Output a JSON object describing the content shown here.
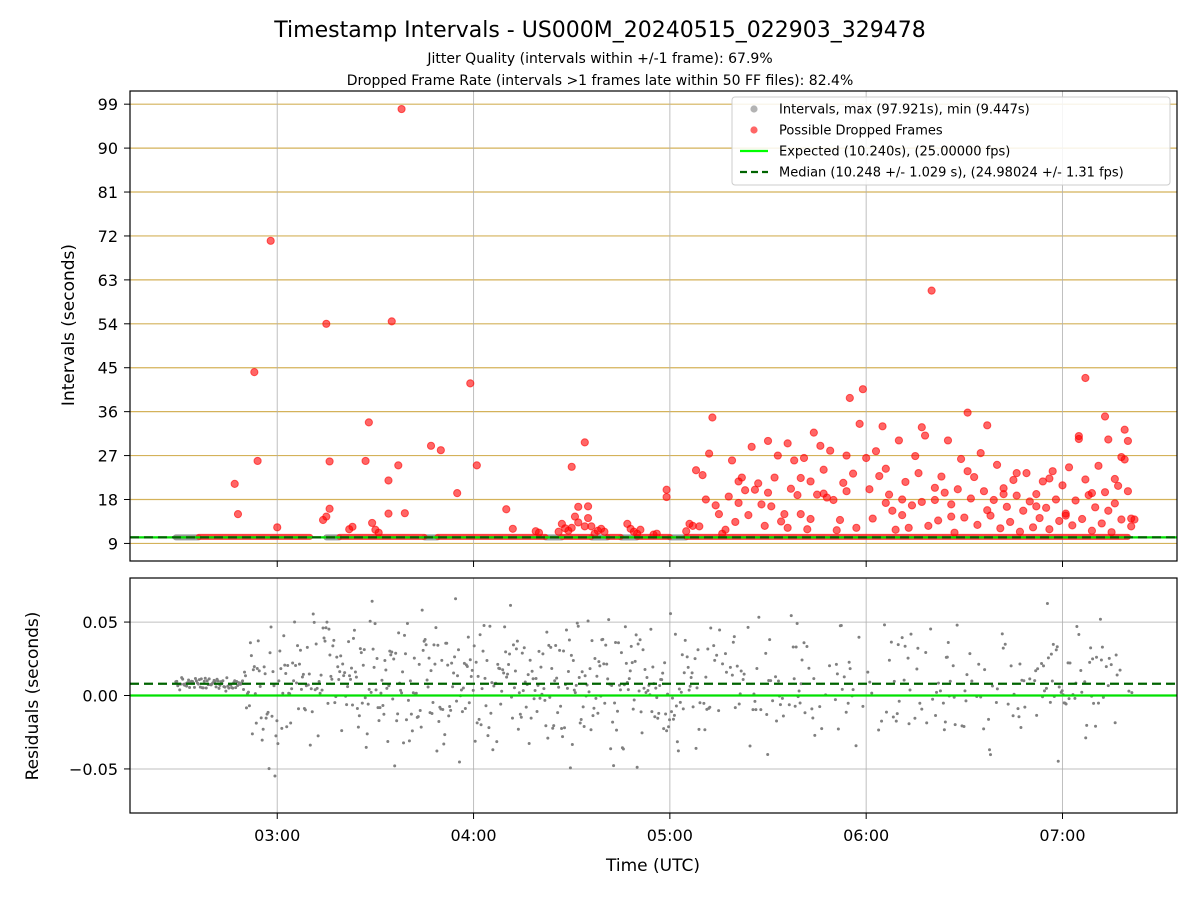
{
  "chart_data": [
    {
      "type": "scatter",
      "panel": "intervals",
      "title": "Timestamp Intervals - US000M_20240515_022903_329478",
      "subtitle_lines": [
        "Jitter Quality (intervals within +/-1 frame): 67.9%",
        "Dropped Frame Rate (intervals >1 frames late within 50 FF files): 82.4%"
      ],
      "ylabel": "Intervals (seconds)",
      "ylim": [
        5.4,
        101.7
      ],
      "yticks": [
        9,
        18,
        27,
        36,
        45,
        54,
        63,
        72,
        81,
        90,
        99
      ],
      "ytick_labels": [
        "9",
        "18",
        "27",
        "36",
        "45",
        "54",
        "63",
        "72",
        "81",
        "90",
        "99"
      ],
      "xlim": [
        "02:15",
        "07:35"
      ],
      "xticks": [
        "03:00",
        "04:00",
        "05:00",
        "06:00",
        "07:00"
      ],
      "grid": "horizontal gold lines at y ticks, vertical grey lines at x ticks",
      "legend_position": "top-right",
      "legend": [
        {
          "label": "Intervals, max (97.921s), min (9.447s)",
          "kind": "point",
          "color": "#808080"
        },
        {
          "label": "Possible Dropped Frames",
          "kind": "point",
          "color": "#ff0000"
        },
        {
          "label": "Expected (10.240s), (25.00000 fps)",
          "kind": "line",
          "color": "#00ff00"
        },
        {
          "label": "Median (10.248 +/- 1.029 s), (24.98024 +/- 1.31 fps)",
          "kind": "dashed",
          "color": "#006400"
        }
      ],
      "expected_line": 10.24,
      "median_line": 10.248,
      "normal_segments": [
        {
          "x_start": "02:29",
          "x_end": "02:36",
          "y": 10.24
        },
        {
          "x_start": "03:15",
          "x_end": "03:19",
          "y": 10.24
        },
        {
          "x_start": "03:45",
          "x_end": "03:49",
          "y": 10.24
        },
        {
          "x_start": "04:22",
          "x_end": "04:27",
          "y": 10.24
        },
        {
          "x_start": "04:36",
          "x_end": "04:41",
          "y": 10.24
        },
        {
          "x_start": "04:45",
          "x_end": "04:50",
          "y": 10.24
        },
        {
          "x_start": "05:00",
          "x_end": "05:05",
          "y": 10.24
        }
      ],
      "dense_dropped_segments": [
        {
          "x_start": "02:36",
          "x_end": "03:10",
          "y": 10.35
        },
        {
          "x_start": "03:19",
          "x_end": "03:45",
          "y": 10.35
        },
        {
          "x_start": "03:49",
          "x_end": "04:22",
          "y": 10.35
        },
        {
          "x_start": "04:27",
          "x_end": "04:36",
          "y": 10.35
        },
        {
          "x_start": "04:41",
          "x_end": "04:45",
          "y": 10.35
        },
        {
          "x_start": "04:50",
          "x_end": "05:00",
          "y": 10.35
        },
        {
          "x_start": "05:05",
          "x_end": "07:20",
          "y": 10.35
        }
      ],
      "dropped_points": [
        [
          "02:47",
          21.2
        ],
        [
          "02:48",
          15.0
        ],
        [
          "02:53",
          44.1
        ],
        [
          "02:54",
          25.9
        ],
        [
          "02:58",
          71.0
        ],
        [
          "03:00",
          12.3
        ],
        [
          "03:14",
          13.8
        ],
        [
          "03:15",
          14.5
        ],
        [
          "03:16",
          16.1
        ],
        [
          "03:15",
          54.0
        ],
        [
          "03:16",
          25.8
        ],
        [
          "03:22",
          11.9
        ],
        [
          "03:23",
          12.4
        ],
        [
          "03:27",
          25.9
        ],
        [
          "03:28",
          33.8
        ],
        [
          "03:29",
          13.2
        ],
        [
          "03:30",
          11.8
        ],
        [
          "03:31",
          11.2
        ],
        [
          "03:34",
          21.9
        ],
        [
          "03:34",
          15.1
        ],
        [
          "03:35",
          54.5
        ],
        [
          "03:37",
          25.0
        ],
        [
          "03:38",
          98.0
        ],
        [
          "03:39",
          15.2
        ],
        [
          "03:47",
          29.0
        ],
        [
          "03:50",
          28.1
        ],
        [
          "03:55",
          19.3
        ],
        [
          "03:59",
          41.8
        ],
        [
          "04:01",
          25.0
        ],
        [
          "04:10",
          16.0
        ],
        [
          "04:12",
          12.0
        ],
        [
          "04:19",
          11.5
        ],
        [
          "04:20",
          11.2
        ],
        [
          "04:26",
          11.4
        ],
        [
          "04:27",
          13.0
        ],
        [
          "04:28",
          12.1
        ],
        [
          "04:29",
          11.6
        ],
        [
          "04:30",
          24.7
        ],
        [
          "04:30",
          12.2
        ],
        [
          "04:31",
          14.5
        ],
        [
          "04:32",
          16.5
        ],
        [
          "04:32",
          13.3
        ],
        [
          "04:34",
          12.5
        ],
        [
          "04:34",
          29.7
        ],
        [
          "04:35",
          16.6
        ],
        [
          "04:35",
          14.2
        ],
        [
          "04:36",
          12.5
        ],
        [
          "04:37",
          11.0
        ],
        [
          "04:38",
          11.6
        ],
        [
          "04:39",
          12.0
        ],
        [
          "04:40",
          11.4
        ],
        [
          "04:47",
          13.0
        ],
        [
          "04:48",
          12.0
        ],
        [
          "04:49",
          11.4
        ],
        [
          "04:50",
          11.0
        ],
        [
          "04:51",
          11.8
        ],
        [
          "04:55",
          10.8
        ],
        [
          "04:56",
          11.0
        ],
        [
          "04:59",
          18.5
        ],
        [
          "04:59",
          20.0
        ],
        [
          "05:05",
          11.5
        ],
        [
          "05:06",
          13.0
        ],
        [
          "05:07",
          12.6
        ],
        [
          "05:08",
          24.0
        ],
        [
          "05:09",
          12.5
        ],
        [
          "05:10",
          23.0
        ],
        [
          "05:11",
          18.0
        ],
        [
          "05:12",
          27.4
        ],
        [
          "05:13",
          34.8
        ],
        [
          "05:14",
          16.8
        ],
        [
          "05:15",
          15.0
        ],
        [
          "05:16",
          11.0
        ],
        [
          "05:17",
          11.8
        ],
        [
          "05:18",
          18.6
        ],
        [
          "05:19",
          26.0
        ],
        [
          "05:20",
          13.4
        ],
        [
          "05:21",
          17.3
        ],
        [
          "05:22",
          22.5
        ],
        [
          "05:23",
          19.9
        ],
        [
          "05:24",
          14.8
        ],
        [
          "05:25",
          28.8
        ],
        [
          "05:26",
          20.0
        ],
        [
          "05:27",
          21.3
        ],
        [
          "05:28",
          17.0
        ],
        [
          "05:29",
          12.6
        ],
        [
          "05:30",
          30.0
        ],
        [
          "05:31",
          16.6
        ],
        [
          "05:32",
          22.5
        ],
        [
          "05:33",
          27.0
        ],
        [
          "05:34",
          13.5
        ],
        [
          "05:35",
          15.0
        ],
        [
          "05:36",
          29.5
        ],
        [
          "05:37",
          20.2
        ],
        [
          "05:38",
          26.0
        ],
        [
          "05:39",
          18.9
        ],
        [
          "05:40",
          22.4
        ],
        [
          "05:41",
          26.5
        ],
        [
          "05:42",
          11.9
        ],
        [
          "05:43",
          14.0
        ],
        [
          "05:44",
          31.7
        ],
        [
          "05:45",
          19.0
        ],
        [
          "05:46",
          29.0
        ],
        [
          "05:47",
          24.1
        ],
        [
          "05:48",
          18.4
        ],
        [
          "05:49",
          28.0
        ],
        [
          "05:50",
          17.9
        ],
        [
          "05:51",
          11.7
        ],
        [
          "05:52",
          13.8
        ],
        [
          "05:53",
          21.4
        ],
        [
          "05:54",
          27.0
        ],
        [
          "05:55",
          38.8
        ],
        [
          "05:56",
          23.3
        ],
        [
          "05:57",
          12.2
        ],
        [
          "05:58",
          33.5
        ],
        [
          "05:59",
          40.6
        ],
        [
          "06:00",
          26.5
        ],
        [
          "06:01",
          20.1
        ],
        [
          "06:02",
          14.1
        ],
        [
          "06:03",
          27.9
        ],
        [
          "06:04",
          22.8
        ],
        [
          "06:05",
          33.0
        ],
        [
          "06:06",
          17.3
        ],
        [
          "06:07",
          19.0
        ],
        [
          "06:08",
          15.7
        ],
        [
          "06:09",
          11.8
        ],
        [
          "06:10",
          30.1
        ],
        [
          "06:11",
          18.0
        ],
        [
          "06:12",
          21.6
        ],
        [
          "06:13",
          12.2
        ],
        [
          "06:14",
          16.8
        ],
        [
          "06:15",
          26.9
        ],
        [
          "06:16",
          23.4
        ],
        [
          "06:17",
          17.5
        ],
        [
          "06:18",
          31.1
        ],
        [
          "06:19",
          12.6
        ],
        [
          "06:20",
          60.8
        ],
        [
          "06:21",
          17.9
        ],
        [
          "06:22",
          13.7
        ],
        [
          "06:23",
          22.7
        ],
        [
          "06:24",
          19.4
        ],
        [
          "06:25",
          30.1
        ],
        [
          "06:26",
          17.0
        ],
        [
          "06:27",
          11.2
        ],
        [
          "06:28",
          20.1
        ],
        [
          "06:29",
          26.3
        ],
        [
          "06:30",
          14.3
        ],
        [
          "06:31",
          35.8
        ],
        [
          "06:32",
          18.2
        ],
        [
          "06:33",
          22.6
        ],
        [
          "06:34",
          12.8
        ],
        [
          "06:35",
          27.5
        ],
        [
          "06:36",
          19.7
        ],
        [
          "06:37",
          33.2
        ],
        [
          "06:38",
          14.7
        ],
        [
          "06:39",
          17.9
        ],
        [
          "06:40",
          25.1
        ],
        [
          "06:41",
          12.1
        ],
        [
          "06:42",
          20.3
        ],
        [
          "06:43",
          16.5
        ],
        [
          "06:44",
          13.4
        ],
        [
          "06:45",
          22.0
        ],
        [
          "06:46",
          18.8
        ],
        [
          "06:47",
          11.4
        ],
        [
          "06:48",
          15.7
        ],
        [
          "06:49",
          23.4
        ],
        [
          "06:50",
          17.6
        ],
        [
          "06:51",
          12.3
        ],
        [
          "06:52",
          19.1
        ],
        [
          "06:53",
          14.2
        ],
        [
          "06:54",
          21.7
        ],
        [
          "06:55",
          16.3
        ],
        [
          "06:56",
          11.9
        ],
        [
          "06:57",
          23.8
        ],
        [
          "06:58",
          18.0
        ],
        [
          "06:59",
          13.6
        ],
        [
          "07:00",
          20.9
        ],
        [
          "07:01",
          15.1
        ],
        [
          "07:02",
          24.6
        ],
        [
          "07:03",
          12.7
        ],
        [
          "07:04",
          17.8
        ],
        [
          "07:05",
          30.4
        ],
        [
          "07:06",
          14.0
        ],
        [
          "07:07",
          22.1
        ],
        [
          "07:08",
          18.9
        ],
        [
          "07:09",
          11.6
        ],
        [
          "07:10",
          16.4
        ],
        [
          "07:11",
          24.9
        ],
        [
          "07:12",
          13.1
        ],
        [
          "07:13",
          19.5
        ],
        [
          "07:14",
          15.7
        ],
        [
          "07:15",
          11.3
        ],
        [
          "07:16",
          17.2
        ],
        [
          "07:17",
          20.8
        ],
        [
          "07:18",
          13.9
        ],
        [
          "07:19",
          26.2
        ],
        [
          "07:20",
          30.0
        ],
        [
          "07:21",
          12.5
        ],
        [
          "05:21",
          21.7
        ],
        [
          "05:30",
          19.4
        ],
        [
          "05:36",
          12.2
        ],
        [
          "05:40",
          15.0
        ],
        [
          "05:43",
          21.7
        ],
        [
          "05:47",
          19.2
        ],
        [
          "05:54",
          19.7
        ],
        [
          "06:06",
          24.3
        ],
        [
          "06:11",
          14.8
        ],
        [
          "06:17",
          32.8
        ],
        [
          "06:21",
          20.4
        ],
        [
          "06:26",
          14.5
        ],
        [
          "06:31",
          23.8
        ],
        [
          "06:37",
          15.8
        ],
        [
          "06:42",
          19.1
        ],
        [
          "06:46",
          23.4
        ],
        [
          "06:52",
          16.6
        ],
        [
          "06:56",
          22.3
        ],
        [
          "07:01",
          14.7
        ],
        [
          "07:05",
          31.0
        ],
        [
          "07:07",
          42.9
        ],
        [
          "07:09",
          19.3
        ],
        [
          "07:13",
          35.0
        ],
        [
          "07:14",
          30.3
        ],
        [
          "07:16",
          22.2
        ],
        [
          "07:18",
          26.7
        ],
        [
          "07:19",
          32.3
        ],
        [
          "07:20",
          19.7
        ],
        [
          "07:21",
          14.1
        ],
        [
          "07:22",
          13.9
        ]
      ]
    },
    {
      "type": "scatter",
      "panel": "residuals",
      "xlabel": "Time (UTC)",
      "ylabel": "Residuals (seconds)",
      "ylim": [
        -0.08,
        0.08
      ],
      "yticks": [
        -0.05,
        0.0,
        0.05
      ],
      "ytick_labels": [
        "−0.05",
        "0.00",
        "0.05"
      ],
      "xlim": [
        "02:15",
        "07:35"
      ],
      "xticks": [
        "03:00",
        "04:00",
        "05:00",
        "06:00",
        "07:00"
      ],
      "xtick_labels": [
        "03:00",
        "04:00",
        "05:00",
        "06:00",
        "07:00"
      ],
      "grid": "on",
      "zero_line": 0.0,
      "median_line": 0.008,
      "point_color": "#808080",
      "notes": "dense cloud of residuals between -0.08 and 0.08"
    }
  ]
}
